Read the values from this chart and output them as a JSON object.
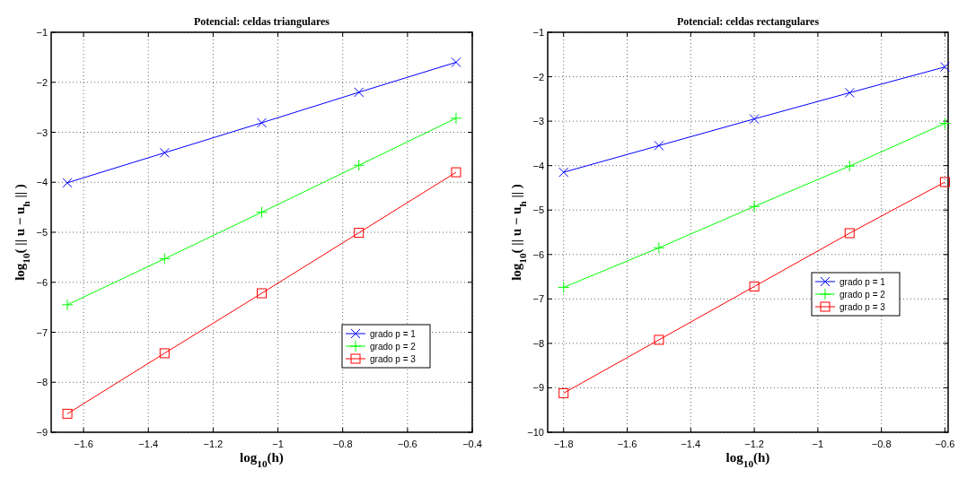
{
  "chart_data": [
    {
      "type": "line",
      "title": "Potencial: celdas triangulares",
      "xlabel": "log$_{10}$(h)",
      "ylabel": "log$_{10}$( || u − u$_{h}$ || )",
      "x": [
        -1.65,
        -1.35,
        -1.05,
        -0.75,
        -0.45
      ],
      "xlim": [
        -1.7,
        -0.4
      ],
      "xticks": [
        -1.6,
        -1.4,
        -1.2,
        -1,
        -0.8,
        -0.6,
        -0.4
      ],
      "ylim": [
        -9,
        -1
      ],
      "yticks": [
        -9,
        -8,
        -7,
        -6,
        -5,
        -4,
        -3,
        -2,
        -1
      ],
      "grid": true,
      "legend": "bottom right",
      "series": [
        {
          "name": "grado p = 1",
          "color": "#0000ff",
          "marker": "cross",
          "values": [
            -4.01,
            -3.41,
            -2.81,
            -2.2,
            -1.6
          ]
        },
        {
          "name": "grado p = 2",
          "color": "#00ff00",
          "marker": "plus",
          "values": [
            -6.45,
            -5.53,
            -4.6,
            -3.66,
            -2.72
          ]
        },
        {
          "name": "grado p = 3",
          "color": "#ff0000",
          "marker": "square",
          "values": [
            -8.63,
            -7.42,
            -6.22,
            -5.01,
            -3.8
          ]
        }
      ]
    },
    {
      "type": "line",
      "title": "Potencial: celdas rectangulares",
      "xlabel": "log$_{10}$(h)",
      "ylabel": "log$_{10}$( || u − u$_{h}$ || )",
      "x": [
        -1.8,
        -1.5,
        -1.2,
        -0.9,
        -0.6
      ],
      "xlim": [
        -1.85,
        -0.59
      ],
      "xticks": [
        -1.8,
        -1.6,
        -1.4,
        -1.2,
        -1,
        -0.8,
        -0.6
      ],
      "ylim": [
        -10,
        -1
      ],
      "yticks": [
        -10,
        -9,
        -8,
        -7,
        -6,
        -5,
        -4,
        -3,
        -2,
        -1
      ],
      "grid": true,
      "legend": "center right",
      "series": [
        {
          "name": "grado p = 1",
          "color": "#0000ff",
          "marker": "cross",
          "values": [
            -4.15,
            -3.55,
            -2.95,
            -2.36,
            -1.78
          ]
        },
        {
          "name": "grado p = 2",
          "color": "#00ff00",
          "marker": "plus",
          "values": [
            -6.74,
            -5.85,
            -4.92,
            -4.01,
            -3.05
          ]
        },
        {
          "name": "grado p = 3",
          "color": "#ff0000",
          "marker": "square",
          "values": [
            -9.12,
            -7.92,
            -6.72,
            -5.52,
            -4.37
          ]
        }
      ]
    }
  ]
}
